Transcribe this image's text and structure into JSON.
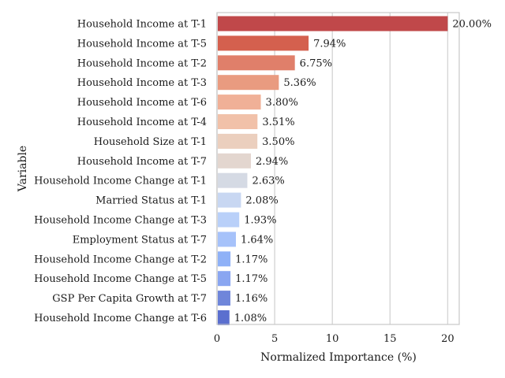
{
  "chart_data": {
    "type": "bar",
    "orientation": "horizontal",
    "xlabel": "Normalized Importance (%)",
    "ylabel": "Variable",
    "xlim": [
      0,
      21
    ],
    "xticks": [
      0,
      5,
      10,
      15,
      20
    ],
    "grid": true,
    "categories": [
      "Household Income at T-1",
      "Household Income at T-5",
      "Household Income at T-2",
      "Household Income at T-3",
      "Household Income at T-6",
      "Household Income at T-4",
      "Household Size at T-1",
      "Household Income at T-7",
      "Household Income Change at T-1",
      "Married Status at T-1",
      "Household Income Change at T-3",
      "Employment Status at T-7",
      "Household Income Change at T-2",
      "Household Income Change at T-5",
      "GSP Per Capita Growth at T-7",
      "Household Income Change at T-6"
    ],
    "values": [
      20.0,
      7.94,
      6.75,
      5.36,
      3.8,
      3.51,
      3.5,
      2.94,
      2.63,
      2.08,
      1.93,
      1.64,
      1.17,
      1.17,
      1.16,
      1.08
    ],
    "value_labels": [
      "20.00%",
      "7.94%",
      "6.75%",
      "5.36%",
      "3.80%",
      "3.51%",
      "3.50%",
      "2.94%",
      "2.63%",
      "2.08%",
      "1.93%",
      "1.64%",
      "1.17%",
      "1.17%",
      "1.16%",
      "1.08%"
    ],
    "colors": [
      "#c0484a",
      "#d4604e",
      "#e07f6a",
      "#e99b80",
      "#f0b097",
      "#f1c1a9",
      "#ebcfbe",
      "#e3d6cf",
      "#d5dae4",
      "#c8d7f2",
      "#b9d0f9",
      "#a6c2fa",
      "#8fb1f7",
      "#8aa6f1",
      "#6f86da",
      "#5b6fcf"
    ]
  }
}
